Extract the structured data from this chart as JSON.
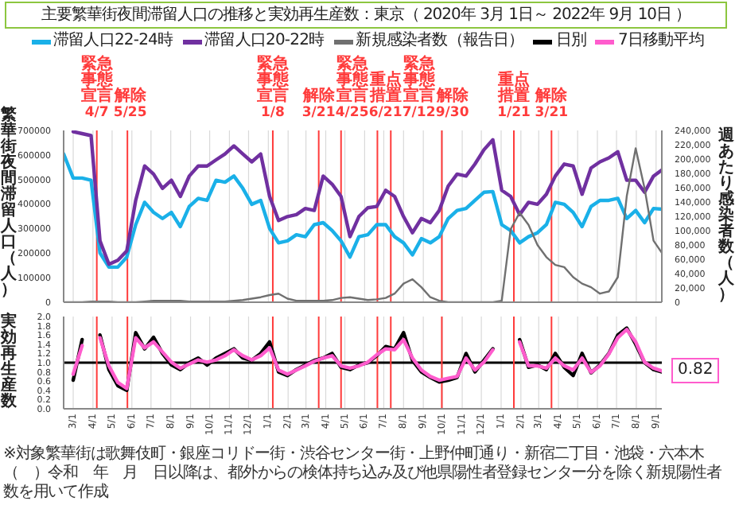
{
  "chart_data": [
    {
      "type": "line",
      "title": "主要繁華街夜間滞留人口の推移と実効再生産数：東京（ 2020年 3月 1日～ 2022年 9月 10日 ）",
      "ylabel": "繁華街夜間滞留人口（人）",
      "y2label": "週あたり感染者数（人）",
      "x": [
        "2020-02-15",
        "2020-03-01",
        "2020-03-15",
        "2020-03-29",
        "2020-04-12",
        "2020-04-26",
        "2020-05-10",
        "2020-05-24",
        "2020-06-07",
        "2020-06-21",
        "2020-07-05",
        "2020-07-19",
        "2020-08-02",
        "2020-08-16",
        "2020-08-30",
        "2020-09-13",
        "2020-09-27",
        "2020-10-11",
        "2020-10-25",
        "2020-11-08",
        "2020-11-22",
        "2020-12-06",
        "2020-12-20",
        "2021-01-03",
        "2021-01-17",
        "2021-01-31",
        "2021-02-14",
        "2021-02-28",
        "2021-03-14",
        "2021-03-28",
        "2021-04-11",
        "2021-04-25",
        "2021-05-09",
        "2021-05-23",
        "2021-06-06",
        "2021-06-20",
        "2021-07-04",
        "2021-07-18",
        "2021-08-01",
        "2021-08-15",
        "2021-08-29",
        "2021-09-12",
        "2021-09-26",
        "2021-10-10",
        "2021-10-24",
        "2021-11-07",
        "2021-11-21",
        "2021-12-05",
        "2021-12-19",
        "2022-01-02",
        "2022-01-16",
        "2022-01-30",
        "2022-02-13",
        "2022-02-27",
        "2022-03-13",
        "2022-03-27",
        "2022-04-10",
        "2022-04-24",
        "2022-05-08",
        "2022-05-22",
        "2022-06-05",
        "2022-06-19",
        "2022-07-03",
        "2022-07-17",
        "2022-07-31",
        "2022-08-14",
        "2022-08-28",
        "2022-09-10"
      ],
      "series": [
        {
          "name": "滞留人口22-24時",
          "color": "#1ab0e8",
          "values": [
            604000,
            506000,
            506000,
            497000,
            201000,
            143000,
            143000,
            184000,
            316000,
            407000,
            366000,
            341000,
            366000,
            308000,
            390000,
            423000,
            415000,
            497000,
            489000,
            514000,
            464000,
            399000,
            415000,
            300000,
            242000,
            250000,
            275000,
            267000,
            316000,
            324000,
            292000,
            250000,
            184000,
            267000,
            275000,
            316000,
            316000,
            267000,
            242000,
            193000,
            259000,
            242000,
            267000,
            341000,
            374000,
            382000,
            415000,
            448000,
            451000,
            316000,
            292000,
            242000,
            267000,
            283000,
            316000,
            407000,
            399000,
            366000,
            308000,
            390000,
            415000,
            415000,
            423000,
            341000,
            374000,
            324000,
            382000,
            379000
          ]
        },
        {
          "name": "滞留人口20-22時",
          "color": "#7030a0",
          "values": [
            null,
            695000,
            687000,
            679000,
            250000,
            155000,
            171000,
            209000,
            415000,
            555000,
            522000,
            464000,
            497000,
            431000,
            514000,
            555000,
            555000,
            580000,
            604000,
            637000,
            604000,
            572000,
            604000,
            431000,
            333000,
            349000,
            357000,
            382000,
            374000,
            514000,
            481000,
            431000,
            267000,
            349000,
            385000,
            390000,
            456000,
            431000,
            349000,
            283000,
            341000,
            324000,
            374000,
            473000,
            522000,
            514000,
            563000,
            621000,
            662000,
            456000,
            431000,
            357000,
            407000,
            399000,
            440000,
            514000,
            563000,
            555000,
            440000,
            547000,
            572000,
            588000,
            613000,
            497000,
            497000,
            448000,
            514000,
            539000
          ]
        },
        {
          "name": "新規感染者数（報告日）",
          "color": "#707070",
          "axis": "y2",
          "values": [
            0,
            0,
            0,
            1000,
            1000,
            1000,
            0,
            0,
            0,
            1000,
            2000,
            2000,
            2000,
            2000,
            1000,
            1000,
            1000,
            1000,
            1000,
            2000,
            3000,
            5000,
            7000,
            10000,
            12000,
            5000,
            2000,
            2000,
            2000,
            2000,
            3000,
            6000,
            7000,
            5000,
            3000,
            4000,
            6000,
            12000,
            26000,
            32000,
            21000,
            7000,
            2000,
            0,
            0,
            0,
            0,
            0,
            0,
            2000,
            102000,
            125000,
            108000,
            80000,
            63000,
            52000,
            49000,
            35000,
            26000,
            21000,
            12000,
            15000,
            35000,
            148000,
            215000,
            159000,
            86000,
            69000
          ]
        }
      ],
      "xlim": [
        "2020-02-15",
        "2022-09-10"
      ],
      "xticks": [
        {
          "value": "2020-03-01",
          "label": null
        },
        {
          "value": "2020-04-01",
          "label": null
        },
        {
          "value": "2020-05-01",
          "label": null
        },
        {
          "value": "2020-06-01",
          "label": null
        },
        {
          "value": "2020-07-01",
          "label": null
        },
        {
          "value": "2020-08-01",
          "label": null
        },
        {
          "value": "2020-09-01",
          "label": null
        },
        {
          "value": "2020-10-01",
          "label": null
        },
        {
          "value": "2020-11-01",
          "label": null
        },
        {
          "value": "2020-12-01",
          "label": null
        },
        {
          "value": "2021-01-01",
          "label": null
        },
        {
          "value": "2021-02-01",
          "label": null
        },
        {
          "value": "2021-03-01",
          "label": null
        },
        {
          "value": "2021-04-01",
          "label": null
        },
        {
          "value": "2021-05-01",
          "label": null
        },
        {
          "value": "2021-06-01",
          "label": null
        },
        {
          "value": "2021-07-01",
          "label": null
        },
        {
          "value": "2021-08-01",
          "label": null
        },
        {
          "value": "2021-09-01",
          "label": null
        },
        {
          "value": "2021-10-01",
          "label": null
        },
        {
          "value": "2021-11-01",
          "label": null
        },
        {
          "value": "2021-12-01",
          "label": null
        },
        {
          "value": "2022-01-01",
          "label": null
        },
        {
          "value": "2022-02-01",
          "label": null
        },
        {
          "value": "2022-03-01",
          "label": null
        },
        {
          "value": "2022-04-01",
          "label": null
        },
        {
          "value": "2022-05-01",
          "label": null
        },
        {
          "value": "2022-06-01",
          "label": null
        },
        {
          "value": "2022-07-01",
          "label": null
        },
        {
          "value": "2022-08-01",
          "label": null
        },
        {
          "value": "2022-09-01",
          "label": null
        }
      ],
      "ylim": [
        0,
        700000
      ],
      "yticks": [
        0,
        100000,
        200000,
        300000,
        400000,
        500000,
        600000,
        700000
      ],
      "y2lim": [
        0,
        240000
      ],
      "y2ticks": [
        0,
        {
          "value": 20000,
          "label": "20,000"
        },
        {
          "value": 40000,
          "label": "40,000"
        },
        {
          "value": 60000,
          "label": "60,000"
        },
        {
          "value": 80000,
          "label": "80,000"
        },
        {
          "value": 100000,
          "label": "100,000"
        },
        {
          "value": 120000,
          "label": "120,000"
        },
        {
          "value": 140000,
          "label": "140,000"
        },
        {
          "value": 160000,
          "label": "160,000"
        },
        {
          "value": 180000,
          "label": "180,000"
        },
        {
          "value": 200000,
          "label": "200,000"
        },
        {
          "value": 220000,
          "label": "220,000"
        },
        {
          "value": 240000,
          "label": "240,000"
        }
      ],
      "tick_labels": "y",
      "grid": "x",
      "legend": "top",
      "ref_lines": [
        {
          "axis": "x",
          "value": "2020-04-07",
          "label": "緊急事態宣言 4/7",
          "color": "#ff3b3b"
        },
        {
          "axis": "x",
          "value": "2020-05-25",
          "label": "解除 5/25",
          "color": "#ff3b3b"
        },
        {
          "axis": "x",
          "value": "2021-01-08",
          "label": "緊急事態宣言 1/8",
          "color": "#ff3b3b"
        },
        {
          "axis": "x",
          "value": "2021-03-21",
          "label": "解除 3/21",
          "color": "#ff3b3b"
        },
        {
          "axis": "x",
          "value": "2021-04-25",
          "label": "緊急事態宣言 4/25",
          "color": "#ff3b3b"
        },
        {
          "axis": "x",
          "value": "2021-06-21",
          "label": "重点措置 6/21",
          "color": "#ff3b3b"
        },
        {
          "axis": "x",
          "value": "2021-07-12",
          "label": "緊急事態宣言 7/12",
          "color": "#ff3b3b"
        },
        {
          "axis": "x",
          "value": "2021-09-30",
          "label": "解除 9/30",
          "color": "#ff3b3b"
        },
        {
          "axis": "x",
          "value": "2022-01-21",
          "label": "重点措置 1/21",
          "color": "#ff3b3b"
        },
        {
          "axis": "x",
          "value": "2022-03-21",
          "label": "解除 3/21",
          "color": "#ff3b3b"
        }
      ]
    },
    {
      "type": "line",
      "ylabel": "実効再生産数",
      "x": [
        "2020-03-01",
        "2020-03-15",
        "2020-03-29",
        "2020-04-12",
        "2020-04-26",
        "2020-05-10",
        "2020-05-24",
        "2020-06-07",
        "2020-06-21",
        "2020-07-05",
        "2020-07-19",
        "2020-08-02",
        "2020-08-16",
        "2020-08-30",
        "2020-09-13",
        "2020-09-27",
        "2020-10-11",
        "2020-10-25",
        "2020-11-08",
        "2020-11-22",
        "2020-12-06",
        "2020-12-20",
        "2021-01-03",
        "2021-01-17",
        "2021-01-31",
        "2021-02-14",
        "2021-02-28",
        "2021-03-14",
        "2021-03-28",
        "2021-04-11",
        "2021-04-25",
        "2021-05-09",
        "2021-05-23",
        "2021-06-06",
        "2021-06-20",
        "2021-07-04",
        "2021-07-18",
        "2021-08-01",
        "2021-08-15",
        "2021-08-29",
        "2021-09-12",
        "2021-09-26",
        "2021-10-10",
        "2021-10-24",
        "2021-11-07",
        "2021-11-21",
        "2021-12-05",
        "2021-12-19",
        "2022-01-02",
        "2022-01-16",
        "2022-01-30",
        "2022-02-13",
        "2022-02-27",
        "2022-03-13",
        "2022-03-27",
        "2022-04-10",
        "2022-04-24",
        "2022-05-08",
        "2022-05-22",
        "2022-06-05",
        "2022-06-19",
        "2022-07-03",
        "2022-07-17",
        "2022-07-31",
        "2022-08-14",
        "2022-08-28",
        "2022-09-10"
      ],
      "series": [
        {
          "name": "日別",
          "color": "#000000",
          "values": [
            0.62,
            1.5,
            null,
            1.6,
            0.85,
            0.5,
            0.4,
            1.65,
            1.3,
            1.55,
            1.2,
            0.95,
            0.85,
            1.0,
            1.1,
            0.95,
            1.1,
            1.2,
            1.3,
            1.1,
            1.05,
            1.2,
            1.45,
            0.8,
            0.72,
            0.85,
            0.95,
            1.05,
            1.1,
            1.2,
            0.9,
            0.85,
            0.95,
            1.0,
            1.15,
            1.35,
            1.3,
            1.65,
            1.05,
            0.8,
            0.68,
            0.58,
            0.62,
            0.68,
            1.2,
            0.8,
            1.05,
            1.3,
            null,
            null,
            1.5,
            0.9,
            0.95,
            0.85,
            1.2,
            0.9,
            0.72,
            1.2,
            0.78,
            0.95,
            1.2,
            1.6,
            1.75,
            1.4,
            1.0,
            0.85,
            0.8
          ]
        },
        {
          "name": "7日移動平均",
          "color": "#ff5ccd",
          "values": [
            0.75,
            1.37,
            null,
            1.54,
            0.93,
            0.57,
            0.44,
            1.54,
            1.32,
            1.45,
            1.23,
            1.01,
            0.88,
            0.97,
            1.06,
            1.01,
            1.06,
            1.15,
            1.28,
            1.15,
            1.06,
            1.15,
            1.32,
            0.84,
            0.75,
            0.84,
            0.93,
            1.03,
            1.1,
            1.15,
            0.93,
            0.88,
            0.93,
            1.01,
            1.17,
            1.3,
            1.28,
            1.5,
            1.1,
            0.84,
            0.7,
            0.62,
            0.66,
            0.7,
            1.1,
            0.84,
            1.01,
            1.28,
            null,
            null,
            1.45,
            0.93,
            0.93,
            0.88,
            1.1,
            0.93,
            0.84,
            1.1,
            0.79,
            0.93,
            1.19,
            1.54,
            1.72,
            1.45,
            1.01,
            0.88,
            0.82
          ]
        }
      ],
      "xlim": [
        "2020-02-15",
        "2022-09-10"
      ],
      "xticks": [
        {
          "value": "2020-03-01",
          "label": "3/1"
        },
        {
          "value": "2020-04-01",
          "label": "4/1"
        },
        {
          "value": "2020-05-01",
          "label": "5/1"
        },
        {
          "value": "2020-06-01",
          "label": "6/1"
        },
        {
          "value": "2020-07-01",
          "label": "7/1"
        },
        {
          "value": "2020-08-01",
          "label": "8/1"
        },
        {
          "value": "2020-09-01",
          "label": "9/1"
        },
        {
          "value": "2020-10-01",
          "label": "10/1"
        },
        {
          "value": "2020-11-01",
          "label": "11/1"
        },
        {
          "value": "2020-12-01",
          "label": "12/1"
        },
        {
          "value": "2021-01-01",
          "label": "1/1"
        },
        {
          "value": "2021-02-01",
          "label": "2/1"
        },
        {
          "value": "2021-03-01",
          "label": "3/1"
        },
        {
          "value": "2021-04-01",
          "label": "4/1"
        },
        {
          "value": "2021-05-01",
          "label": "5/1"
        },
        {
          "value": "2021-06-01",
          "label": "6/1"
        },
        {
          "value": "2021-07-01",
          "label": "7/1"
        },
        {
          "value": "2021-08-01",
          "label": "8/1"
        },
        {
          "value": "2021-09-01",
          "label": "9/1"
        },
        {
          "value": "2021-10-01",
          "label": "10/1"
        },
        {
          "value": "2021-11-01",
          "label": "11/1"
        },
        {
          "value": "2021-12-01",
          "label": "12/1"
        },
        {
          "value": "2022-01-01",
          "label": "1/1"
        },
        {
          "value": "2022-02-01",
          "label": "2/1"
        },
        {
          "value": "2022-03-01",
          "label": "3/1"
        },
        {
          "value": "2022-04-01",
          "label": "4/1"
        },
        {
          "value": "2022-05-01",
          "label": "5/1"
        },
        {
          "value": "2022-06-01",
          "label": "6/1"
        },
        {
          "value": "2022-07-01",
          "label": "7/1"
        },
        {
          "value": "2022-08-01",
          "label": "8/1"
        },
        {
          "value": "2022-09-01",
          "label": "9/1"
        }
      ],
      "ylim": [
        0,
        2
      ],
      "yticks": [
        {
          "value": 0,
          "label": "0.0"
        },
        {
          "value": 0.2,
          "label": "0.2"
        },
        {
          "value": 0.4,
          "label": "0.4"
        },
        {
          "value": 0.6,
          "label": "0.6"
        },
        {
          "value": 0.8,
          "label": "0.8"
        },
        {
          "value": 1,
          "label": "1.0"
        },
        {
          "value": 1.2,
          "label": "1.2"
        },
        {
          "value": 1.4,
          "label": "1.4"
        },
        {
          "value": 1.6,
          "label": "1.6"
        },
        {
          "value": 1.8,
          "label": "1.8"
        },
        {
          "value": 2,
          "label": "2.0"
        }
      ],
      "grid": "x",
      "legend": "top",
      "ref_lines": [
        {
          "axis": "y",
          "value": 1,
          "color": "#000000"
        },
        {
          "axis": "x",
          "value": "2020-04-07",
          "color": "#ff3b3b"
        },
        {
          "axis": "x",
          "value": "2020-05-25",
          "color": "#ff3b3b"
        },
        {
          "axis": "x",
          "value": "2021-01-08",
          "color": "#ff3b3b"
        },
        {
          "axis": "x",
          "value": "2021-03-21",
          "color": "#ff3b3b"
        },
        {
          "axis": "x",
          "value": "2021-04-25",
          "color": "#ff3b3b"
        },
        {
          "axis": "x",
          "value": "2021-06-21",
          "color": "#ff3b3b"
        },
        {
          "axis": "x",
          "value": "2021-07-12",
          "color": "#ff3b3b"
        },
        {
          "axis": "x",
          "value": "2021-09-30",
          "color": "#ff3b3b"
        },
        {
          "axis": "x",
          "value": "2022-01-21",
          "color": "#ff3b3b"
        },
        {
          "axis": "x",
          "value": "2022-03-21",
          "color": "#ff3b3b"
        }
      ],
      "annotations": [
        {
          "text": "0.82",
          "x": "2022-09-10",
          "y": 0.82
        },
        "※対象繁華街は歌舞伎町・銀座コリドー街・渋谷センター街・上野仲町通り・新宿二丁目・池袋・六本木",
        "（　）令和　年　月　日以降は、都外からの検体持ち込み及び他県陽性者登録センター分を除く新規陽性者数を用いて作成"
      ]
    }
  ]
}
